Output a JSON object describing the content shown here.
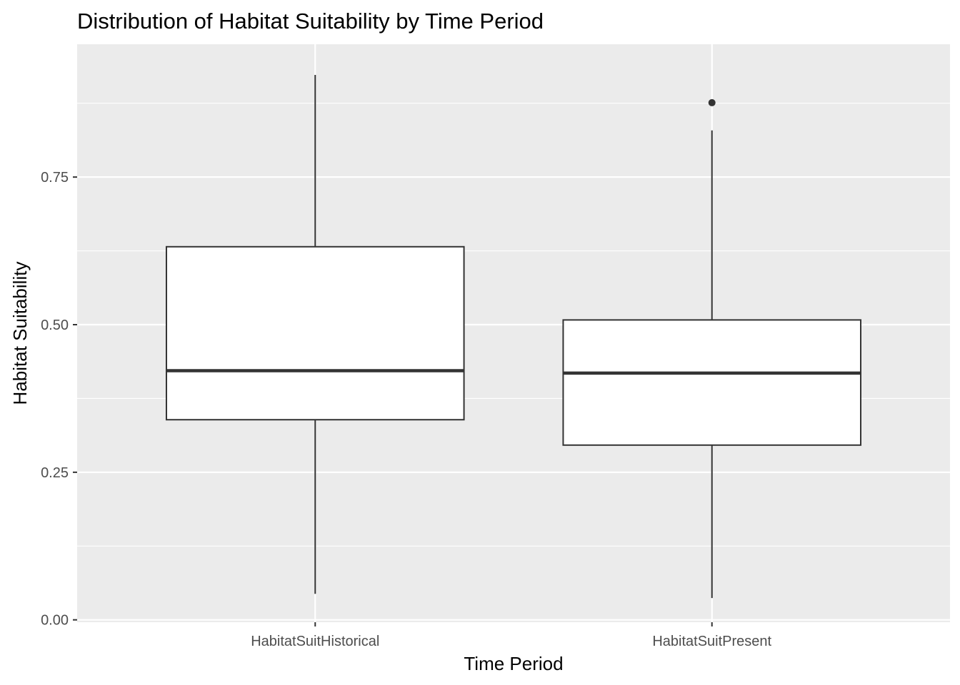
{
  "chart_data": {
    "type": "box",
    "title": "Distribution of Habitat Suitability by Time Period",
    "xlabel": "Time Period",
    "ylabel": "Habitat Suitability",
    "ylim": [
      -0.004,
      0.975
    ],
    "yticks": [
      {
        "value": 0.0,
        "label": "0.00"
      },
      {
        "value": 0.25,
        "label": "0.25"
      },
      {
        "value": 0.5,
        "label": "0.50"
      },
      {
        "value": 0.75,
        "label": "0.75"
      }
    ],
    "y_minor_ticks": [
      0.125,
      0.375,
      0.625,
      0.875
    ],
    "categories": [
      "HabitatSuitHistorical",
      "HabitatSuitPresent"
    ],
    "boxes": [
      {
        "category": "HabitatSuitHistorical",
        "whisker_low": 0.044,
        "q1": 0.339,
        "median": 0.422,
        "q3": 0.632,
        "whisker_high": 0.923,
        "outliers": []
      },
      {
        "category": "HabitatSuitPresent",
        "whisker_low": 0.037,
        "q1": 0.296,
        "median": 0.418,
        "q3": 0.508,
        "whisker_high": 0.829,
        "outliers": [
          0.876
        ]
      }
    ],
    "grid": true,
    "legend": "none",
    "colors": {
      "panel_background": "#ebebeb",
      "grid": "#ffffff",
      "box_fill": "#ffffff",
      "box_line": "#333333",
      "tick_label": "#4d4d4d"
    }
  }
}
